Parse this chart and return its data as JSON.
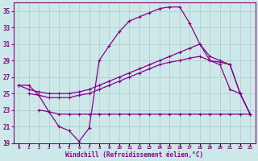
{
  "xlabel": "Windchill (Refroidissement éolien,°C)",
  "background_color": "#cce8e8",
  "line_color": "#880088",
  "grid_color": "#aacccc",
  "series1_x": [
    0,
    1,
    2,
    3,
    4,
    5,
    6,
    7,
    8,
    9,
    10,
    11,
    12,
    13,
    14,
    15,
    16,
    17,
    18,
    19,
    20,
    21,
    22,
    23
  ],
  "series1_y": [
    26.0,
    26.0,
    24.8,
    22.8,
    21.0,
    20.5,
    19.2,
    20.8,
    29.0,
    30.8,
    32.5,
    33.8,
    34.3,
    34.8,
    35.3,
    35.5,
    35.5,
    33.5,
    31.0,
    29.0,
    28.5,
    25.5,
    25.0,
    22.5
  ],
  "series2_x": [
    0,
    1,
    2,
    3,
    4,
    5,
    6,
    7,
    8,
    9,
    10,
    11,
    12,
    13,
    14,
    15,
    16,
    17,
    18,
    19,
    20,
    21,
    22,
    23
  ],
  "series2_y": [
    26.0,
    25.5,
    25.2,
    25.0,
    25.0,
    25.0,
    25.2,
    25.5,
    26.0,
    26.5,
    27.0,
    27.5,
    28.0,
    28.5,
    29.0,
    29.5,
    30.0,
    30.5,
    31.0,
    29.5,
    29.0,
    28.5,
    25.0,
    22.5
  ],
  "series3_x": [
    1,
    2,
    3,
    4,
    5,
    6,
    7,
    8,
    9,
    10,
    11,
    12,
    13,
    14,
    15,
    16,
    17,
    18,
    19,
    20,
    21,
    22,
    23
  ],
  "series3_y": [
    25.0,
    24.8,
    24.5,
    24.5,
    24.5,
    24.8,
    25.0,
    25.5,
    26.0,
    26.5,
    27.0,
    27.5,
    28.0,
    28.5,
    28.8,
    29.0,
    29.3,
    29.5,
    29.0,
    28.8,
    28.5,
    25.0,
    22.5
  ],
  "series4_x": [
    2,
    3,
    4,
    5,
    6,
    7,
    8,
    9,
    10,
    11,
    12,
    13,
    14,
    15,
    16,
    17,
    18,
    19,
    20,
    21,
    22,
    23
  ],
  "series4_y": [
    23.0,
    22.8,
    22.5,
    22.5,
    22.5,
    22.5,
    22.5,
    22.5,
    22.5,
    22.5,
    22.5,
    22.5,
    22.5,
    22.5,
    22.5,
    22.5,
    22.5,
    22.5,
    22.5,
    22.5,
    22.5,
    22.5
  ],
  "ylim": [
    19,
    36
  ],
  "yticks": [
    19,
    21,
    23,
    25,
    27,
    29,
    31,
    33,
    35
  ],
  "xlim_min": -0.5,
  "xlim_max": 23.5
}
